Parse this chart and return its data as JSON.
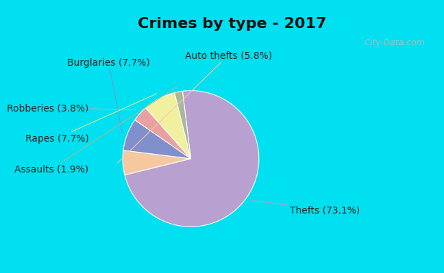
{
  "title": "Crimes by type - 2017",
  "labels": [
    "Thefts",
    "Auto thefts",
    "Burglaries",
    "Robberies",
    "Rapes",
    "Assaults"
  ],
  "values": [
    73.1,
    5.8,
    7.7,
    3.8,
    7.7,
    1.9
  ],
  "colors": [
    "#b8a0d0",
    "#f5c8a0",
    "#8090cc",
    "#e8a0a0",
    "#f0f0a0",
    "#a8b898"
  ],
  "label_texts": [
    "Thefts (73.1%)",
    "Auto thefts (5.8%)",
    "Burglaries (7.7%)",
    "Robberies (3.8%)",
    "Rapes (7.7%)",
    "Assaults (1.9%)"
  ],
  "bg_cyan": "#00e0f0",
  "bg_main": "#d8edd8",
  "title_fontsize": 16,
  "label_fontsize": 10,
  "startangle": 97,
  "watermark": "City-Data.com"
}
